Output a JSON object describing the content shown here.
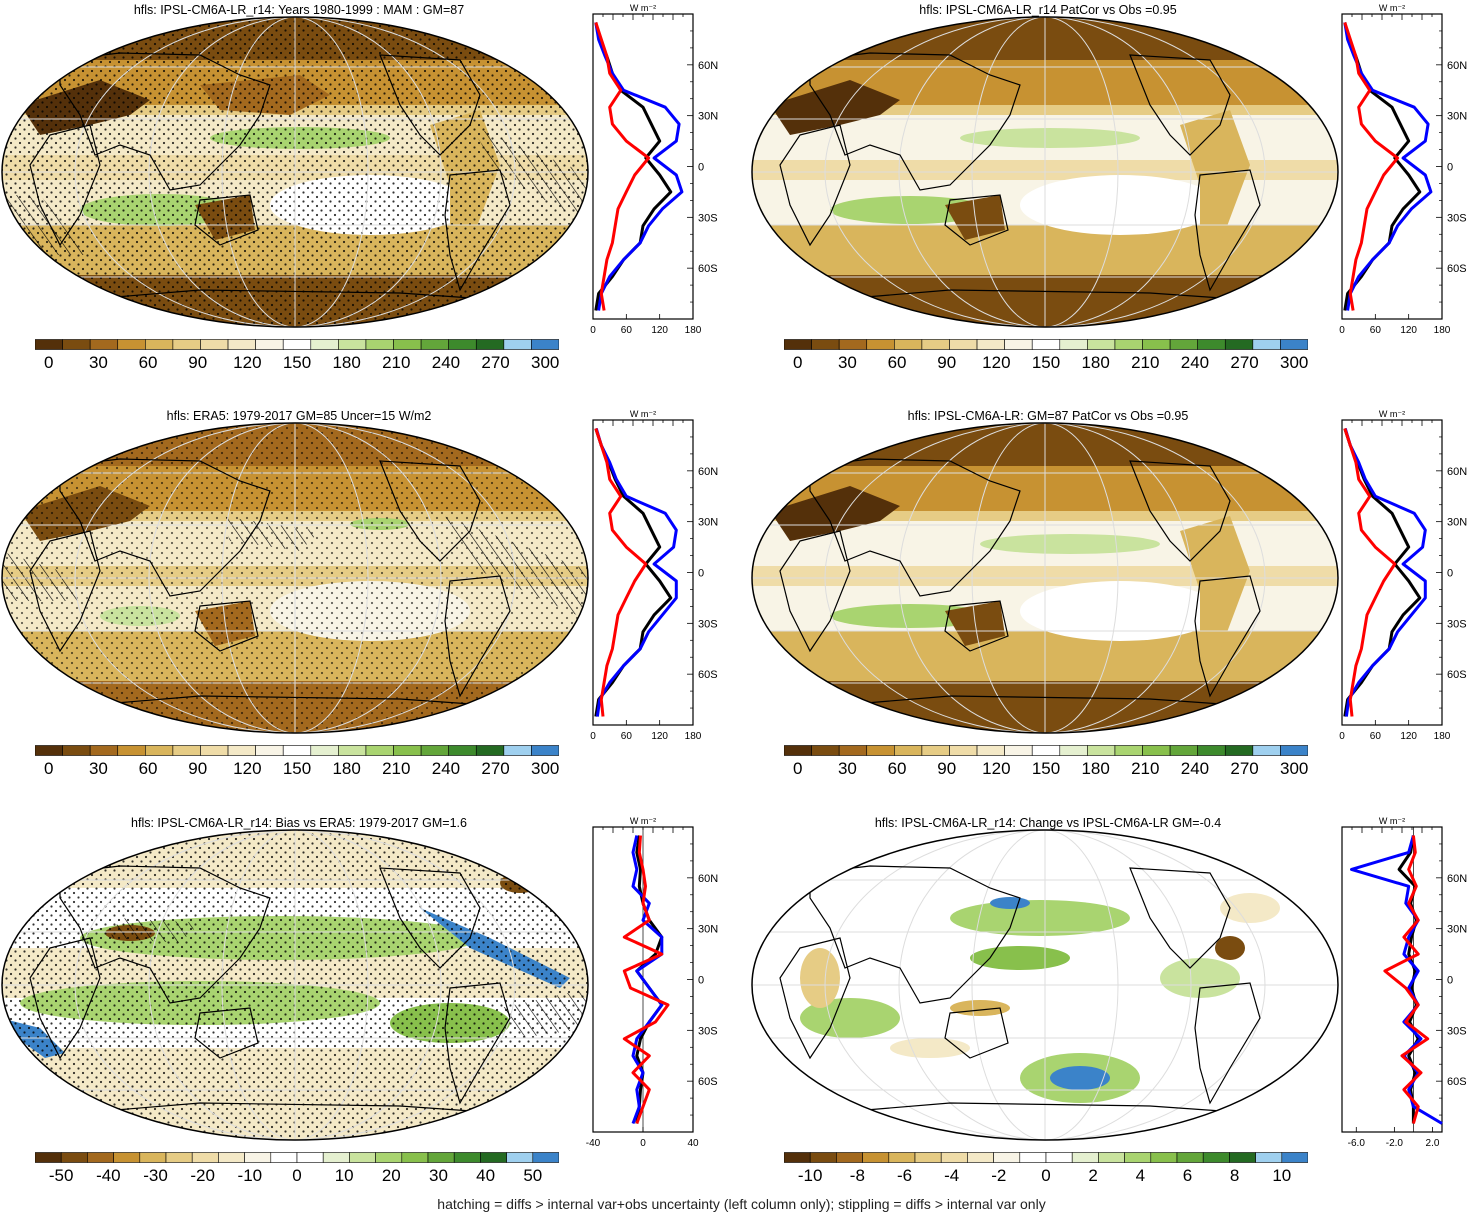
{
  "footer": "hatching = diffs > internal var+obs uncertainty (left column only); stippling = diffs > internal var only",
  "unit_label": "W m⁻²",
  "lat_ticks": [
    "60N",
    "30N",
    "0",
    "30S",
    "60S"
  ],
  "palettes": {
    "absolute": [
      "#54300a",
      "#7a4c10",
      "#a3691e",
      "#c79232",
      "#d9b55c",
      "#e6cc85",
      "#efdca8",
      "#f4e9c7",
      "#f8f4e6",
      "#ffffff",
      "#e5f0d0",
      "#c9e39e",
      "#a9d470",
      "#88c04c",
      "#63a63a",
      "#3d8a2c",
      "#246a22",
      "#9fd0ef",
      "#3b83c9"
    ],
    "difference": [
      "#54300a",
      "#7a4c10",
      "#a3691e",
      "#c79232",
      "#d9b55c",
      "#e6cc85",
      "#efdca8",
      "#f4e9c7",
      "#f8f4e6",
      "#ffffff",
      "#ffffff",
      "#e5f0d0",
      "#c9e39e",
      "#a9d470",
      "#88c04c",
      "#63a63a",
      "#3d8a2c",
      "#246a22",
      "#9fd0ef",
      "#3b83c9"
    ]
  },
  "panels": [
    {
      "id": "p1",
      "title": "hfls: IPSL-CM6A-LR_r14: Years 1980-1999 : MAM : GM=87",
      "cbar_type": "absolute",
      "cbar_labels": [
        "0",
        "30",
        "60",
        "90",
        "120",
        "150",
        "180",
        "210",
        "240",
        "270",
        "300"
      ],
      "profile_xticks": [
        "0",
        "60",
        "120",
        "180"
      ]
    },
    {
      "id": "p2",
      "title": "hfls: IPSL-CM6A-LR_r14 PatCor vs Obs =0.95",
      "cbar_type": "absolute",
      "cbar_labels": [
        "0",
        "30",
        "60",
        "90",
        "120",
        "150",
        "180",
        "210",
        "240",
        "270",
        "300"
      ],
      "profile_xticks": [
        "0",
        "60",
        "120",
        "180"
      ]
    },
    {
      "id": "p3",
      "title": "hfls: ERA5: 1979-2017 GM=85 Uncer=15 W/m2",
      "cbar_type": "absolute",
      "cbar_labels": [
        "0",
        "30",
        "60",
        "90",
        "120",
        "150",
        "180",
        "210",
        "240",
        "270",
        "300"
      ],
      "profile_xticks": [
        "0",
        "60",
        "120",
        "180"
      ]
    },
    {
      "id": "p4",
      "title": "hfls: IPSL-CM6A-LR: GM=87 PatCor vs Obs =0.95",
      "cbar_type": "absolute",
      "cbar_labels": [
        "0",
        "30",
        "60",
        "90",
        "120",
        "150",
        "180",
        "210",
        "240",
        "270",
        "300"
      ],
      "profile_xticks": [
        "0",
        "60",
        "120",
        "180"
      ]
    },
    {
      "id": "p5",
      "title": "hfls: IPSL-CM6A-LR_r14: Bias vs ERA5: 1979-2017 GM=1.6",
      "cbar_type": "difference",
      "cbar_labels": [
        "-50",
        "-40",
        "-30",
        "-20",
        "-10",
        "0",
        "10",
        "20",
        "30",
        "40",
        "50"
      ],
      "profile_xticks": [
        "-40",
        "0",
        "40"
      ]
    },
    {
      "id": "p6",
      "title": "hfls: IPSL-CM6A-LR_r14: Change vs IPSL-CM6A-LR GM=-0.4",
      "cbar_type": "difference",
      "cbar_labels": [
        "-10",
        "-8",
        "-6",
        "-4",
        "-2",
        "0",
        "2",
        "4",
        "6",
        "8",
        "10"
      ],
      "profile_xticks": [
        "-6.0",
        "-2.0",
        "2.0"
      ]
    }
  ],
  "chart_data": [
    {
      "type": "line",
      "panel": "p1",
      "y": [
        -85,
        -75,
        -65,
        -55,
        -45,
        -35,
        -25,
        -15,
        -5,
        5,
        15,
        25,
        35,
        45,
        55,
        65,
        75,
        85
      ],
      "xlim": [
        0,
        180
      ],
      "series": [
        {
          "color": "#000000",
          "values": [
            5,
            10,
            35,
            55,
            85,
            90,
            110,
            140,
            120,
            95,
            120,
            105,
            90,
            50,
            35,
            25,
            12,
            5
          ]
        },
        {
          "color": "#0000ff",
          "values": [
            10,
            15,
            30,
            55,
            85,
            100,
            125,
            160,
            150,
            110,
            150,
            155,
            130,
            55,
            35,
            22,
            10,
            5
          ]
        },
        {
          "color": "#ff0000",
          "values": [
            20,
            15,
            20,
            25,
            35,
            40,
            45,
            60,
            75,
            100,
            60,
            35,
            30,
            50,
            30,
            25,
            15,
            5
          ]
        }
      ]
    },
    {
      "type": "line",
      "panel": "p2",
      "y": [
        -85,
        -75,
        -65,
        -55,
        -45,
        -35,
        -25,
        -15,
        -5,
        5,
        15,
        25,
        35,
        45,
        55,
        65,
        75,
        85
      ],
      "xlim": [
        0,
        180
      ],
      "series": [
        {
          "color": "#000000",
          "values": [
            5,
            10,
            35,
            55,
            85,
            90,
            110,
            140,
            120,
            95,
            120,
            105,
            90,
            50,
            35,
            25,
            12,
            5
          ]
        },
        {
          "color": "#0000ff",
          "values": [
            10,
            15,
            30,
            55,
            85,
            100,
            125,
            160,
            150,
            110,
            150,
            155,
            130,
            55,
            35,
            22,
            10,
            5
          ]
        },
        {
          "color": "#ff0000",
          "values": [
            20,
            15,
            20,
            25,
            35,
            40,
            45,
            60,
            75,
            100,
            60,
            35,
            30,
            50,
            30,
            25,
            15,
            5
          ]
        }
      ]
    },
    {
      "type": "line",
      "panel": "p3",
      "y": [
        -85,
        -75,
        -65,
        -55,
        -45,
        -35,
        -25,
        -15,
        -5,
        5,
        15,
        25,
        35,
        45,
        55,
        65,
        75,
        85
      ],
      "xlim": [
        0,
        180
      ],
      "series": [
        {
          "color": "#000000",
          "values": [
            5,
            10,
            35,
            55,
            85,
            90,
            110,
            140,
            120,
            95,
            120,
            105,
            90,
            55,
            40,
            28,
            15,
            5
          ]
        },
        {
          "color": "#0000ff",
          "values": [
            8,
            12,
            30,
            55,
            85,
            100,
            125,
            150,
            150,
            110,
            145,
            150,
            130,
            60,
            42,
            30,
            15,
            6
          ]
        },
        {
          "color": "#ff0000",
          "values": [
            18,
            15,
            20,
            25,
            35,
            40,
            45,
            60,
            75,
            95,
            60,
            35,
            30,
            50,
            30,
            25,
            15,
            5
          ]
        }
      ]
    },
    {
      "type": "line",
      "panel": "p4",
      "y": [
        -85,
        -75,
        -65,
        -55,
        -45,
        -35,
        -25,
        -15,
        -5,
        5,
        15,
        25,
        35,
        45,
        55,
        65,
        75,
        85
      ],
      "xlim": [
        0,
        180
      ],
      "series": [
        {
          "color": "#000000",
          "values": [
            5,
            10,
            35,
            55,
            85,
            90,
            110,
            140,
            120,
            95,
            120,
            105,
            90,
            55,
            40,
            28,
            15,
            5
          ]
        },
        {
          "color": "#0000ff",
          "values": [
            8,
            12,
            30,
            55,
            85,
            100,
            125,
            150,
            150,
            110,
            145,
            150,
            130,
            60,
            42,
            30,
            15,
            6
          ]
        },
        {
          "color": "#ff0000",
          "values": [
            18,
            15,
            20,
            25,
            35,
            40,
            45,
            60,
            75,
            95,
            60,
            35,
            30,
            50,
            30,
            25,
            15,
            5
          ]
        }
      ]
    },
    {
      "type": "line",
      "panel": "p5",
      "y": [
        -85,
        -75,
        -65,
        -55,
        -45,
        -35,
        -25,
        -15,
        -5,
        5,
        15,
        25,
        35,
        45,
        55,
        65,
        75,
        85
      ],
      "xlim": [
        -40,
        40
      ],
      "series": [
        {
          "color": "#000000",
          "values": [
            -5,
            -3,
            -2,
            0,
            -5,
            -2,
            5,
            15,
            5,
            -5,
            10,
            15,
            5,
            0,
            -3,
            -2,
            -5,
            -3
          ]
        },
        {
          "color": "#0000ff",
          "values": [
            -8,
            -3,
            -5,
            0,
            -8,
            -5,
            5,
            15,
            5,
            -5,
            15,
            15,
            0,
            5,
            -8,
            -5,
            -8,
            -5
          ]
        },
        {
          "color": "#ff0000",
          "values": [
            -5,
            0,
            5,
            -8,
            5,
            -15,
            10,
            20,
            -10,
            -15,
            15,
            -15,
            5,
            0,
            2,
            0,
            -3,
            -2
          ]
        }
      ]
    },
    {
      "type": "line",
      "panel": "p6",
      "y": [
        -85,
        -75,
        -65,
        -55,
        -45,
        -35,
        -25,
        -15,
        -5,
        5,
        15,
        25,
        35,
        45,
        55,
        65,
        75,
        85
      ],
      "xlim": [
        -7.5,
        3
      ],
      "series": [
        {
          "color": "#000000",
          "values": [
            0,
            0,
            -0.3,
            0.2,
            -0.5,
            0.5,
            -0.4,
            0.3,
            -0.2,
            0.2,
            -0.5,
            -0.2,
            0.3,
            -0.3,
            0.2,
            -1.5,
            -0.3,
            0
          ]
        },
        {
          "color": "#0000ff",
          "values": [
            3,
            0,
            -0.5,
            0.5,
            -1,
            0.8,
            -1,
            0.5,
            -0.5,
            0.5,
            -1,
            -0.5,
            0.5,
            -0.8,
            -0.5,
            -6.5,
            -0.5,
            0
          ]
        },
        {
          "color": "#ff0000",
          "values": [
            0,
            0.5,
            -1,
            0.8,
            -1.2,
            1.5,
            -0.8,
            0.5,
            -0.8,
            -3,
            0.5,
            -1,
            0.5,
            -0.5,
            0.3,
            -0.5,
            0.2,
            0
          ]
        }
      ]
    }
  ]
}
